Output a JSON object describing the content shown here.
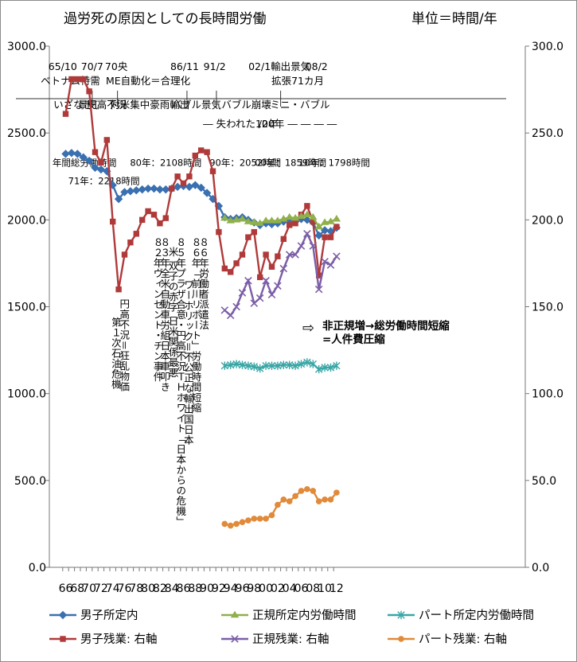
{
  "chart_data": {
    "type": "line",
    "title": "過労死の原因としての長時間労働",
    "unit_label": "単位＝時間/年",
    "x": [
      66,
      67,
      68,
      69,
      70,
      71,
      72,
      73,
      74,
      75,
      76,
      77,
      78,
      79,
      80,
      81,
      82,
      83,
      84,
      85,
      86,
      87,
      88,
      89,
      90,
      91,
      92,
      93,
      94,
      95,
      96,
      97,
      98,
      99,
      100,
      101,
      102,
      103,
      104,
      105,
      106,
      107,
      108,
      109,
      110,
      111,
      112
    ],
    "x_tick_labels": [
      "66",
      "68",
      "70",
      "72",
      "74",
      "76",
      "78",
      "80",
      "82",
      "84",
      "86",
      "88",
      "90",
      "92",
      "94",
      "96",
      "98",
      "00",
      "02",
      "04",
      "06",
      "08",
      "10",
      "12"
    ],
    "left_axis": {
      "min": 0,
      "max": 3000,
      "ticks": [
        "0.0",
        "500.0",
        "1000.0",
        "1500.0",
        "2000.0",
        "2500.0",
        "3000.0"
      ]
    },
    "right_axis": {
      "min": 0,
      "max": 300,
      "ticks": [
        "0.0",
        "50.0",
        "100.0",
        "150.0",
        "200.0",
        "250.0",
        "300.0"
      ]
    },
    "series": [
      {
        "name": "男子所定内",
        "axis": "left",
        "color": "#3a6fb0",
        "marker": "diamond",
        "values": [
          2380,
          2385,
          2380,
          2360,
          2340,
          2300,
          2290,
          2280,
          2200,
          2120,
          2160,
          2165,
          2170,
          2175,
          2180,
          2180,
          2175,
          2175,
          2180,
          2190,
          2195,
          2190,
          2200,
          2185,
          2155,
          2120,
          2080,
          2015,
          2005,
          2010,
          2015,
          2000,
          1985,
          1970,
          1980,
          1975,
          1980,
          1990,
          1995,
          1990,
          2005,
          2000,
          1985,
          1910,
          1940,
          1935,
          1955
        ]
      },
      {
        "name": "男子残業: 右軸",
        "axis": "right",
        "color": "#b03a3a",
        "marker": "square",
        "values": [
          261,
          281,
          281,
          281,
          274,
          239,
          233,
          246,
          199,
          160,
          180,
          187,
          192,
          200,
          205,
          203,
          198,
          201,
          218,
          225,
          221,
          225,
          237,
          240,
          239,
          228,
          193,
          172,
          170,
          175,
          180,
          190,
          193,
          167,
          180,
          173,
          179,
          189,
          197,
          198,
          203,
          208,
          199,
          168,
          190,
          190,
          196
        ]
      },
      {
        "name": "正規所定内労働時間",
        "axis": "left",
        "color": "#8fb04a",
        "marker": "triangle",
        "values": [
          null,
          null,
          null,
          null,
          null,
          null,
          null,
          null,
          null,
          null,
          null,
          null,
          null,
          null,
          null,
          null,
          null,
          null,
          null,
          null,
          null,
          null,
          null,
          null,
          null,
          null,
          null,
          2010,
          1995,
          2000,
          2005,
          1990,
          1985,
          1980,
          1995,
          1995,
          1995,
          2005,
          2015,
          2010,
          2020,
          2030,
          2015,
          1960,
          1985,
          1990,
          2005
        ]
      },
      {
        "name": "正規残業: 右軸",
        "axis": "right",
        "color": "#7b5ea7",
        "marker": "x",
        "values": [
          null,
          null,
          null,
          null,
          null,
          null,
          null,
          null,
          null,
          null,
          null,
          null,
          null,
          null,
          null,
          null,
          null,
          null,
          null,
          null,
          null,
          null,
          null,
          null,
          null,
          null,
          null,
          148,
          145,
          150,
          158,
          165,
          152,
          155,
          165,
          157,
          162,
          172,
          180,
          180,
          185,
          192,
          185,
          160,
          176,
          174,
          179
        ]
      },
      {
        "name": "パート所定内労働時間",
        "axis": "left",
        "color": "#3aa6a6",
        "marker": "star",
        "values": [
          null,
          null,
          null,
          null,
          null,
          null,
          null,
          null,
          null,
          null,
          null,
          null,
          null,
          null,
          null,
          null,
          null,
          null,
          null,
          null,
          null,
          null,
          null,
          null,
          null,
          null,
          null,
          1160,
          1165,
          1170,
          1165,
          1160,
          1155,
          1145,
          1160,
          1160,
          1160,
          1165,
          1165,
          1160,
          1170,
          1180,
          1170,
          1140,
          1150,
          1150,
          1160
        ]
      },
      {
        "name": "パート残業: 右軸",
        "axis": "right",
        "color": "#e08a3a",
        "marker": "circle",
        "values": [
          null,
          null,
          null,
          null,
          null,
          null,
          null,
          null,
          null,
          null,
          null,
          null,
          null,
          null,
          null,
          null,
          null,
          null,
          null,
          null,
          null,
          null,
          null,
          null,
          null,
          null,
          null,
          25,
          24,
          25,
          26,
          27,
          28,
          28,
          28,
          30,
          36,
          39,
          38,
          41,
          44,
          45,
          44,
          38,
          39,
          39,
          43
        ]
      }
    ],
    "era_labels": [
      {
        "text": "65/10",
        "x": 65.5,
        "row": 1
      },
      {
        "text": "70/7",
        "x": 70.5,
        "row": 1
      },
      {
        "text": "70央",
        "x": 74.6,
        "row": 1
      },
      {
        "text": "86/11",
        "x": 86.2,
        "row": 1
      },
      {
        "text": "91/2",
        "x": 91.3,
        "row": 1
      },
      {
        "text": "02/1輸出景気",
        "x": 102.3,
        "row": 1
      },
      {
        "text": "08/2",
        "x": 108.6,
        "row": 1
      },
      {
        "text": "ベトナム特需",
        "x": 66.8,
        "row": 2
      },
      {
        "text": "ME自動化＝合理化",
        "x": 80.0,
        "row": 2
      },
      {
        "text": "拡張71カ月",
        "x": 105.4,
        "row": 2
      },
      {
        "text": "いざなぎ",
        "x": 67.3,
        "row": 3
      },
      {
        "text": "景気",
        "x": 69.8,
        "row": 3
      },
      {
        "text": "円高不況",
        "x": 73.0,
        "row": 3
      },
      {
        "text": "対米集中豪雨輸出",
        "x": 80.3,
        "row": 3
      },
      {
        "text": "バブル景気",
        "x": 88.2,
        "row": 3
      },
      {
        "text": "バブル崩壊",
        "x": 96.7,
        "row": 3
      },
      {
        "text": "ミニ・バブル",
        "x": 105.8,
        "row": 3
      },
      {
        "text": "― 失われた10年",
        "x": 95.7,
        "row": 4
      },
      {
        "text": "/20年 ― ― ― ―",
        "x": 105.4,
        "row": 4
      }
    ],
    "hours_labels": [
      {
        "text": "年間総労働時間",
        "x": 69.2,
        "y": 2310
      },
      {
        "text": "71年：2218時間",
        "x": 72.5,
        "y": 2205
      },
      {
        "text": "80年：2108時間",
        "x": 83.0,
        "y": 2311
      },
      {
        "text": "90年：2052時間",
        "x": 96.5,
        "y": 2311
      },
      {
        "text": "00年：1859時間",
        "x": 104.2,
        "y": 2311
      },
      {
        "text": "10年：1798時間",
        "x": 111.6,
        "y": 2311
      }
    ],
    "event_labels": [
      {
        "text": "第１次石油危機",
        "x": 74.5,
        "y": 1440
      },
      {
        "text": "円高不況＝狂乱物価",
        "x": 75.9,
        "y": 1545
      },
      {
        "text": "８２年ヴィンセント・チン事件",
        "x": 81.6,
        "y": 1900
      },
      {
        "text": "８３年全米自動車労組日本車叩き",
        "x": 82.8,
        "y": 1900
      },
      {
        "text": "米 双子の赤字 日米関係最悪",
        "x": 84.2,
        "y": 1845
      },
      {
        "text": "８５年プラザ合意・円高不況ＴＨホワイト「日本からの危機」",
        "x": 85.5,
        "y": 1900
      },
      {
        "text": "ワーホリック＝不公正な輸出国日本",
        "x": 86.8,
        "y": 1655
      },
      {
        "text": "８６年「前川リポート」労働時間短縮",
        "x": 88.1,
        "y": 1900
      },
      {
        "text": "８６年労働者派遣法",
        "x": 89.4,
        "y": 1900
      }
    ],
    "callout": {
      "arrow": "⇨",
      "line1": "非正規増→総労働時間短縮",
      "line2": "=人件費圧縮"
    }
  }
}
